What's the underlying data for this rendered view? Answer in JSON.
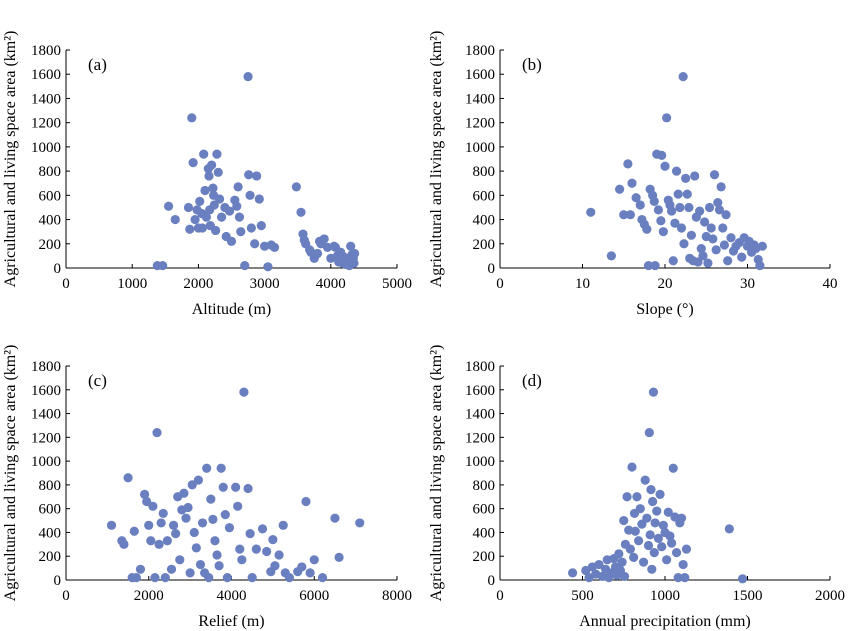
{
  "chart_data": [
    {
      "type": "scatter",
      "panel_label": "(a)",
      "xlabel": "Altitude (m)",
      "ylabel": "Agricultural and living space area (km²)",
      "xlim": [
        0,
        5000
      ],
      "ylim": [
        0,
        1800
      ],
      "xticks": [
        0,
        1000,
        2000,
        3000,
        4000,
        5000
      ],
      "yticks": [
        0,
        200,
        400,
        600,
        800,
        1000,
        1200,
        1400,
        1600,
        1800
      ],
      "points": [
        [
          1380,
          20
        ],
        [
          1460,
          20
        ],
        [
          1550,
          510
        ],
        [
          1650,
          400
        ],
        [
          1850,
          500
        ],
        [
          1870,
          320
        ],
        [
          1900,
          1240
        ],
        [
          1920,
          870
        ],
        [
          1950,
          400
        ],
        [
          1980,
          480
        ],
        [
          2000,
          330
        ],
        [
          2020,
          550
        ],
        [
          2050,
          450
        ],
        [
          2060,
          330
        ],
        [
          2080,
          940
        ],
        [
          2100,
          640
        ],
        [
          2120,
          420
        ],
        [
          2150,
          820
        ],
        [
          2160,
          760
        ],
        [
          2170,
          480
        ],
        [
          2180,
          350
        ],
        [
          2200,
          850
        ],
        [
          2220,
          660
        ],
        [
          2230,
          600
        ],
        [
          2240,
          520
        ],
        [
          2260,
          310
        ],
        [
          2280,
          940
        ],
        [
          2300,
          790
        ],
        [
          2320,
          570
        ],
        [
          2350,
          420
        ],
        [
          2400,
          500
        ],
        [
          2420,
          260
        ],
        [
          2470,
          470
        ],
        [
          2500,
          220
        ],
        [
          2550,
          560
        ],
        [
          2580,
          510
        ],
        [
          2600,
          670
        ],
        [
          2620,
          420
        ],
        [
          2640,
          300
        ],
        [
          2700,
          20
        ],
        [
          2750,
          1580
        ],
        [
          2760,
          770
        ],
        [
          2780,
          600
        ],
        [
          2800,
          330
        ],
        [
          2850,
          200
        ],
        [
          2880,
          760
        ],
        [
          2920,
          570
        ],
        [
          2950,
          350
        ],
        [
          3000,
          180
        ],
        [
          3050,
          10
        ],
        [
          3100,
          190
        ],
        [
          3150,
          170
        ],
        [
          3480,
          670
        ],
        [
          3550,
          460
        ],
        [
          3580,
          280
        ],
        [
          3600,
          230
        ],
        [
          3620,
          200
        ],
        [
          3680,
          150
        ],
        [
          3700,
          130
        ],
        [
          3750,
          80
        ],
        [
          3800,
          120
        ],
        [
          3830,
          220
        ],
        [
          3850,
          200
        ],
        [
          3900,
          240
        ],
        [
          3950,
          170
        ],
        [
          4000,
          80
        ],
        [
          4050,
          180
        ],
        [
          4070,
          170
        ],
        [
          4100,
          100
        ],
        [
          4120,
          50
        ],
        [
          4150,
          130
        ],
        [
          4180,
          40
        ],
        [
          4200,
          90
        ],
        [
          4220,
          30
        ],
        [
          4250,
          60
        ],
        [
          4280,
          20
        ],
        [
          4300,
          180
        ],
        [
          4320,
          110
        ],
        [
          4340,
          80
        ],
        [
          4350,
          40
        ],
        [
          4360,
          120
        ]
      ]
    },
    {
      "type": "scatter",
      "panel_label": "(b)",
      "xlabel": "Slope (°)",
      "ylabel": "Agricultural and living space area (km²)",
      "xlim": [
        0,
        40
      ],
      "ylim": [
        0,
        1800
      ],
      "xticks": [
        0,
        10,
        20,
        30,
        40
      ],
      "yticks": [
        0,
        200,
        400,
        600,
        800,
        1000,
        1200,
        1400,
        1600,
        1800
      ],
      "points": [
        [
          11,
          460
        ],
        [
          13.5,
          100
        ],
        [
          14.5,
          650
        ],
        [
          15,
          440
        ],
        [
          15.5,
          860
        ],
        [
          15.8,
          440
        ],
        [
          16,
          700
        ],
        [
          16.5,
          580
        ],
        [
          17,
          520
        ],
        [
          17.2,
          400
        ],
        [
          17.5,
          360
        ],
        [
          17.8,
          320
        ],
        [
          18,
          20
        ],
        [
          18.2,
          650
        ],
        [
          18.5,
          600
        ],
        [
          18.7,
          550
        ],
        [
          18.8,
          20
        ],
        [
          19,
          940
        ],
        [
          19.2,
          480
        ],
        [
          19.5,
          390
        ],
        [
          19.6,
          930
        ],
        [
          19.8,
          300
        ],
        [
          20,
          840
        ],
        [
          20.2,
          1240
        ],
        [
          20.4,
          560
        ],
        [
          20.6,
          520
        ],
        [
          20.8,
          470
        ],
        [
          21,
          60
        ],
        [
          21.2,
          370
        ],
        [
          21.4,
          800
        ],
        [
          21.6,
          610
        ],
        [
          21.8,
          500
        ],
        [
          22,
          330
        ],
        [
          22.2,
          1580
        ],
        [
          22.3,
          200
        ],
        [
          22.5,
          740
        ],
        [
          22.7,
          610
        ],
        [
          22.9,
          500
        ],
        [
          23,
          80
        ],
        [
          23.2,
          270
        ],
        [
          23.4,
          60
        ],
        [
          23.6,
          760
        ],
        [
          23.8,
          420
        ],
        [
          24,
          50
        ],
        [
          24.2,
          470
        ],
        [
          24.4,
          160
        ],
        [
          24.6,
          100
        ],
        [
          24.8,
          380
        ],
        [
          25,
          260
        ],
        [
          25.2,
          40
        ],
        [
          25.4,
          500
        ],
        [
          25.6,
          330
        ],
        [
          25.8,
          240
        ],
        [
          26,
          770
        ],
        [
          26.2,
          150
        ],
        [
          26.4,
          540
        ],
        [
          26.6,
          480
        ],
        [
          26.8,
          670
        ],
        [
          27,
          330
        ],
        [
          27.2,
          190
        ],
        [
          27.4,
          440
        ],
        [
          27.6,
          60
        ],
        [
          28,
          250
        ],
        [
          28.3,
          140
        ],
        [
          28.6,
          180
        ],
        [
          29,
          210
        ],
        [
          29.3,
          90
        ],
        [
          29.6,
          250
        ],
        [
          30,
          180
        ],
        [
          30.2,
          220
        ],
        [
          30.5,
          130
        ],
        [
          30.8,
          190
        ],
        [
          31,
          160
        ],
        [
          31.3,
          70
        ],
        [
          31.5,
          20
        ],
        [
          31.8,
          180
        ]
      ]
    },
    {
      "type": "scatter",
      "panel_label": "(c)",
      "xlabel": "Relief (m)",
      "ylabel": "Agricultural and living space area (km²)",
      "xlim": [
        0,
        8000
      ],
      "ylim": [
        0,
        1800
      ],
      "xticks": [
        0,
        2000,
        4000,
        6000,
        8000
      ],
      "yticks": [
        0,
        200,
        400,
        600,
        800,
        1000,
        1200,
        1400,
        1600,
        1800
      ],
      "points": [
        [
          1100,
          460
        ],
        [
          1350,
          330
        ],
        [
          1400,
          300
        ],
        [
          1500,
          860
        ],
        [
          1600,
          20
        ],
        [
          1650,
          410
        ],
        [
          1700,
          20
        ],
        [
          1800,
          90
        ],
        [
          1900,
          720
        ],
        [
          1950,
          660
        ],
        [
          2000,
          460
        ],
        [
          2050,
          330
        ],
        [
          2100,
          620
        ],
        [
          2150,
          20
        ],
        [
          2200,
          1240
        ],
        [
          2250,
          300
        ],
        [
          2300,
          480
        ],
        [
          2350,
          560
        ],
        [
          2400,
          20
        ],
        [
          2450,
          330
        ],
        [
          2550,
          90
        ],
        [
          2600,
          460
        ],
        [
          2650,
          390
        ],
        [
          2700,
          700
        ],
        [
          2750,
          170
        ],
        [
          2800,
          590
        ],
        [
          2850,
          730
        ],
        [
          2900,
          520
        ],
        [
          2950,
          610
        ],
        [
          3000,
          60
        ],
        [
          3050,
          800
        ],
        [
          3100,
          400
        ],
        [
          3150,
          270
        ],
        [
          3200,
          840
        ],
        [
          3250,
          130
        ],
        [
          3300,
          480
        ],
        [
          3350,
          60
        ],
        [
          3400,
          940
        ],
        [
          3450,
          20
        ],
        [
          3500,
          680
        ],
        [
          3550,
          510
        ],
        [
          3600,
          330
        ],
        [
          3650,
          210
        ],
        [
          3700,
          120
        ],
        [
          3750,
          940
        ],
        [
          3800,
          780
        ],
        [
          3850,
          550
        ],
        [
          3900,
          20
        ],
        [
          3950,
          440
        ],
        [
          4100,
          780
        ],
        [
          4150,
          620
        ],
        [
          4200,
          260
        ],
        [
          4250,
          170
        ],
        [
          4300,
          1580
        ],
        [
          4400,
          770
        ],
        [
          4450,
          390
        ],
        [
          4500,
          20
        ],
        [
          4600,
          260
        ],
        [
          4750,
          430
        ],
        [
          4850,
          240
        ],
        [
          4950,
          70
        ],
        [
          5000,
          340
        ],
        [
          5050,
          120
        ],
        [
          5150,
          210
        ],
        [
          5250,
          460
        ],
        [
          5300,
          60
        ],
        [
          5400,
          20
        ],
        [
          5600,
          70
        ],
        [
          5700,
          110
        ],
        [
          5800,
          660
        ],
        [
          5900,
          60
        ],
        [
          6000,
          170
        ],
        [
          6200,
          20
        ],
        [
          6500,
          520
        ],
        [
          6600,
          190
        ],
        [
          7100,
          480
        ]
      ]
    },
    {
      "type": "scatter",
      "panel_label": "(d)",
      "xlabel": "Annual precipitation (mm)",
      "ylabel": "Agricultural and living space area (km²)",
      "xlim": [
        0,
        2000
      ],
      "ylim": [
        0,
        1800
      ],
      "xticks": [
        0,
        500,
        1000,
        1500,
        2000
      ],
      "yticks": [
        0,
        200,
        400,
        600,
        800,
        1000,
        1200,
        1400,
        1600,
        1800
      ],
      "points": [
        [
          440,
          60
        ],
        [
          520,
          80
        ],
        [
          540,
          20
        ],
        [
          560,
          110
        ],
        [
          580,
          50
        ],
        [
          600,
          130
        ],
        [
          620,
          30
        ],
        [
          640,
          90
        ],
        [
          650,
          170
        ],
        [
          660,
          20
        ],
        [
          680,
          60
        ],
        [
          690,
          180
        ],
        [
          700,
          110
        ],
        [
          710,
          40
        ],
        [
          720,
          220
        ],
        [
          730,
          80
        ],
        [
          740,
          150
        ],
        [
          750,
          500
        ],
        [
          755,
          30
        ],
        [
          760,
          300
        ],
        [
          770,
          700
        ],
        [
          780,
          420
        ],
        [
          790,
          260
        ],
        [
          800,
          950
        ],
        [
          810,
          190
        ],
        [
          815,
          560
        ],
        [
          820,
          410
        ],
        [
          830,
          700
        ],
        [
          840,
          330
        ],
        [
          850,
          600
        ],
        [
          860,
          470
        ],
        [
          870,
          150
        ],
        [
          880,
          840
        ],
        [
          890,
          520
        ],
        [
          900,
          290
        ],
        [
          905,
          1240
        ],
        [
          910,
          380
        ],
        [
          915,
          760
        ],
        [
          920,
          90
        ],
        [
          925,
          660
        ],
        [
          930,
          1580
        ],
        [
          935,
          230
        ],
        [
          940,
          480
        ],
        [
          950,
          580
        ],
        [
          960,
          350
        ],
        [
          970,
          720
        ],
        [
          980,
          280
        ],
        [
          990,
          460
        ],
        [
          1000,
          400
        ],
        [
          1010,
          170
        ],
        [
          1020,
          570
        ],
        [
          1030,
          370
        ],
        [
          1040,
          310
        ],
        [
          1050,
          940
        ],
        [
          1060,
          530
        ],
        [
          1070,
          230
        ],
        [
          1080,
          20
        ],
        [
          1090,
          480
        ],
        [
          1100,
          520
        ],
        [
          1110,
          130
        ],
        [
          1120,
          20
        ],
        [
          1130,
          260
        ],
        [
          1390,
          430
        ],
        [
          1470,
          10
        ]
      ]
    }
  ]
}
